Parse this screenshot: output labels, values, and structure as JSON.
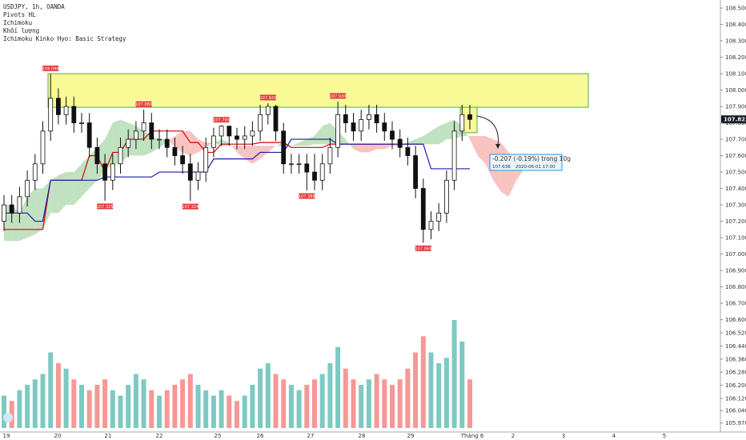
{
  "chart_data": {
    "type": "candlestick",
    "legend": [
      "USDJPY, 1h, OANDA",
      "Pivots HL",
      "Ichimoku",
      "Khối lượng",
      "Ichimoku Kinko Hyo: Basic Strategy"
    ],
    "xtick_labels": [
      "19",
      "20",
      "21",
      "22",
      "25",
      "26",
      "27",
      "28",
      "29",
      "Tháng 6",
      "2",
      "3",
      "4",
      "5"
    ],
    "ylim": [
      105.915,
      108.549
    ],
    "yticks": [
      {
        "value": 108.5,
        "label": "108.500"
      },
      {
        "value": 108.4,
        "label": "108.400"
      },
      {
        "value": 108.3,
        "label": "108.300"
      },
      {
        "value": 108.2,
        "label": "108.200"
      },
      {
        "value": 108.1,
        "label": "108.100"
      },
      {
        "value": 108.0,
        "label": "108.000"
      },
      {
        "value": 107.9,
        "label": "107.900"
      },
      {
        "value": 107.8,
        "label": "107.800"
      },
      {
        "value": 107.7,
        "label": "107.700"
      },
      {
        "value": 107.6,
        "label": "107.600"
      },
      {
        "value": 107.5,
        "label": "107.500"
      },
      {
        "value": 107.4,
        "label": "107.400"
      },
      {
        "value": 107.3,
        "label": "107.300"
      },
      {
        "value": 107.2,
        "label": "107.200"
      },
      {
        "value": 107.1,
        "label": "107.100"
      },
      {
        "value": 107.0,
        "label": "107.000"
      },
      {
        "value": 106.9,
        "label": "106.900"
      },
      {
        "value": 106.8,
        "label": "106.800"
      },
      {
        "value": 106.7,
        "label": "106.700"
      },
      {
        "value": 106.6,
        "label": "106.600"
      },
      {
        "value": 106.52,
        "label": "106.520"
      },
      {
        "value": 106.44,
        "label": "106.440"
      },
      {
        "value": 106.36,
        "label": "106.360"
      },
      {
        "value": 106.28,
        "label": "106.280"
      },
      {
        "value": 106.2,
        "label": "106.200"
      },
      {
        "value": 106.12,
        "label": "106.120"
      },
      {
        "value": 106.046,
        "label": "106.046"
      },
      {
        "value": 105.97,
        "label": "105.970"
      }
    ],
    "open": [
      107.2,
      107.3,
      107.25,
      107.35,
      107.45,
      107.55,
      107.75,
      107.95,
      107.85,
      107.9,
      107.8,
      107.8,
      107.65,
      107.55,
      107.45,
      107.55,
      107.65,
      107.7,
      107.75,
      107.8,
      107.7,
      107.7,
      107.65,
      107.6,
      107.55,
      107.45,
      107.5,
      107.65,
      107.72,
      107.78,
      107.72,
      107.7,
      107.72,
      107.75,
      107.85,
      107.9,
      107.75,
      107.55,
      107.55,
      107.55,
      107.5,
      107.45,
      107.55,
      107.65,
      107.85,
      107.8,
      107.75,
      107.82,
      107.85,
      107.8,
      107.75,
      107.7,
      107.65,
      107.6,
      107.4,
      107.15,
      107.2,
      107.25,
      107.45,
      107.75,
      107.85
    ],
    "high": [
      107.36,
      107.36,
      107.41,
      107.51,
      107.61,
      107.81,
      108.098,
      108.01,
      107.96,
      107.96,
      107.86,
      107.86,
      107.71,
      107.61,
      107.61,
      107.71,
      107.76,
      107.81,
      107.88,
      107.86,
      107.76,
      107.76,
      107.71,
      107.66,
      107.61,
      107.56,
      107.71,
      107.77,
      107.785,
      107.78,
      107.77,
      107.78,
      107.81,
      107.91,
      107.92,
      107.91,
      107.8,
      107.61,
      107.61,
      107.61,
      107.61,
      107.61,
      107.71,
      107.93,
      107.91,
      107.86,
      107.88,
      107.91,
      107.91,
      107.86,
      107.81,
      107.76,
      107.71,
      107.66,
      107.46,
      107.26,
      107.31,
      107.51,
      107.81,
      107.91,
      107.91
    ],
    "low": [
      107.14,
      107.19,
      107.19,
      107.29,
      107.39,
      107.49,
      107.69,
      107.79,
      107.79,
      107.74,
      107.74,
      107.59,
      107.49,
      107.325,
      107.39,
      107.49,
      107.59,
      107.64,
      107.69,
      107.64,
      107.64,
      107.59,
      107.54,
      107.49,
      107.324,
      107.39,
      107.44,
      107.59,
      107.66,
      107.66,
      107.64,
      107.64,
      107.66,
      107.69,
      107.79,
      107.69,
      107.49,
      107.49,
      107.49,
      107.388,
      107.39,
      107.39,
      107.49,
      107.59,
      107.74,
      107.69,
      107.69,
      107.76,
      107.74,
      107.69,
      107.64,
      107.59,
      107.54,
      107.34,
      107.069,
      107.09,
      107.14,
      107.19,
      107.39,
      107.69,
      107.76
    ],
    "close": [
      107.3,
      107.25,
      107.35,
      107.45,
      107.55,
      107.75,
      107.95,
      107.85,
      107.9,
      107.8,
      107.8,
      107.65,
      107.55,
      107.45,
      107.55,
      107.65,
      107.7,
      107.75,
      107.8,
      107.7,
      107.7,
      107.65,
      107.6,
      107.55,
      107.45,
      107.5,
      107.65,
      107.72,
      107.78,
      107.72,
      107.7,
      107.72,
      107.75,
      107.85,
      107.9,
      107.75,
      107.55,
      107.55,
      107.55,
      107.5,
      107.45,
      107.55,
      107.65,
      107.85,
      107.8,
      107.75,
      107.82,
      107.85,
      107.8,
      107.75,
      107.7,
      107.65,
      107.6,
      107.4,
      107.15,
      107.2,
      107.25,
      107.45,
      107.75,
      107.85,
      107.821
    ],
    "last_price": {
      "value": 107.821,
      "label": "107.821"
    },
    "volume": [
      30,
      25,
      35,
      40,
      45,
      50,
      70,
      60,
      55,
      45,
      40,
      35,
      40,
      45,
      35,
      30,
      40,
      50,
      45,
      35,
      30,
      35,
      40,
      45,
      50,
      40,
      35,
      30,
      35,
      30,
      25,
      30,
      40,
      55,
      60,
      50,
      45,
      40,
      35,
      40,
      45,
      50,
      60,
      75,
      55,
      45,
      40,
      45,
      50,
      45,
      40,
      45,
      55,
      70,
      85,
      70,
      60,
      65,
      100,
      80,
      45
    ],
    "up_color": "#26a69a",
    "down_color": "#ef5350",
    "tenkan": {
      "color": "#d50000",
      "values": [
        107.15,
        107.15,
        107.15,
        107.15,
        107.15,
        107.15,
        107.45,
        107.45,
        107.45,
        107.45,
        107.45,
        107.6,
        107.6,
        107.5,
        107.62,
        107.62,
        107.7,
        107.7,
        107.7,
        107.75,
        107.75,
        107.75,
        107.75,
        107.75,
        107.68,
        107.68,
        107.62,
        107.62,
        107.67,
        107.67,
        107.67,
        107.67,
        107.67,
        107.68,
        107.68,
        107.68,
        107.68,
        107.65,
        107.65,
        107.65,
        107.65,
        107.65,
        107.67,
        107.67,
        107.67,
        107.67,
        107.67,
        107.67,
        107.67,
        107.67,
        107.67,
        107.67,
        107.67,
        107.67,
        107.67,
        null,
        null,
        null,
        null,
        null,
        null
      ]
    },
    "kijun": {
      "color": "#1a1ab0",
      "values": [
        107.25,
        107.25,
        107.25,
        107.25,
        107.2,
        107.2,
        107.45,
        107.45,
        107.45,
        107.45,
        107.45,
        107.45,
        107.45,
        107.47,
        107.47,
        107.47,
        107.47,
        107.47,
        107.47,
        107.47,
        107.5,
        107.5,
        107.5,
        107.5,
        107.5,
        107.5,
        107.5,
        107.58,
        107.58,
        107.58,
        107.58,
        107.58,
        107.58,
        107.62,
        107.62,
        107.62,
        107.62,
        107.7,
        107.7,
        107.7,
        107.7,
        107.7,
        107.7,
        107.67,
        107.67,
        107.67,
        107.67,
        107.67,
        107.67,
        107.67,
        107.67,
        107.67,
        107.67,
        107.67,
        107.67,
        107.52,
        107.52,
        107.52,
        107.52,
        107.52,
        107.52
      ]
    },
    "span_a": [
      107.3,
      107.3,
      107.25,
      107.35,
      107.4,
      107.4,
      107.45,
      107.48,
      107.5,
      107.5,
      107.55,
      107.6,
      107.65,
      107.7,
      107.8,
      107.82,
      107.8,
      107.78,
      107.75,
      107.72,
      107.7,
      107.7,
      107.65,
      107.62,
      107.6,
      107.62,
      107.65,
      107.68,
      107.7,
      107.68,
      107.62,
      107.58,
      107.55,
      107.58,
      107.62,
      107.66,
      107.68,
      107.66,
      107.68,
      107.7,
      107.72,
      107.78,
      107.8,
      107.75,
      107.7,
      107.64,
      107.62,
      107.62,
      107.64,
      107.64,
      107.66,
      107.66,
      107.68,
      107.7,
      107.72,
      107.75,
      107.78,
      107.8,
      107.82,
      107.78,
      107.7,
      107.6,
      107.55,
      107.45,
      107.38,
      107.35,
      107.45,
      107.52
    ],
    "span_b": [
      107.08,
      107.08,
      107.08,
      107.1,
      107.12,
      107.15,
      107.25,
      107.25,
      107.3,
      107.3,
      107.35,
      107.4,
      107.45,
      107.5,
      107.55,
      107.55,
      107.6,
      107.6,
      107.6,
      107.62,
      107.65,
      107.68,
      107.72,
      107.75,
      107.75,
      107.7,
      107.68,
      107.68,
      107.66,
      107.66,
      107.66,
      107.66,
      107.66,
      107.66,
      107.66,
      107.66,
      107.66,
      107.66,
      107.66,
      107.66,
      107.67,
      107.67,
      107.67,
      107.67,
      107.67,
      107.67,
      107.67,
      107.67,
      107.67,
      107.67,
      107.67,
      107.67,
      107.67,
      107.67,
      107.67,
      107.67,
      107.67,
      107.7,
      107.7,
      107.72,
      107.72,
      107.72,
      107.72,
      107.7,
      107.68,
      107.62,
      107.58,
      107.56
    ],
    "cloud_up_color": "#a5d6a7",
    "cloud_down_color": "#f7a9a7",
    "pivots": [
      {
        "value": 108.098,
        "label": "108.098"
      },
      {
        "value": 107.88,
        "label": "107.880"
      },
      {
        "value": 107.785,
        "label": "107.785"
      },
      {
        "value": 107.92,
        "label": "107.920"
      },
      {
        "value": 107.93,
        "label": "107.930"
      },
      {
        "value": 107.325,
        "label": "107.325"
      },
      {
        "value": 107.324,
        "label": "107.324"
      },
      {
        "value": 107.388,
        "label": "107.388"
      },
      {
        "value": 107.069,
        "label": "107.069"
      }
    ],
    "zones": [
      {
        "low": 107.895,
        "high": 108.1
      },
      {
        "low": 107.74,
        "high": 107.895
      }
    ],
    "measure": {
      "line1": "-0.207 (-0.19%) trong 10g",
      "line2": "107.638",
      "line3": "2020-06-01  17:00"
    }
  }
}
